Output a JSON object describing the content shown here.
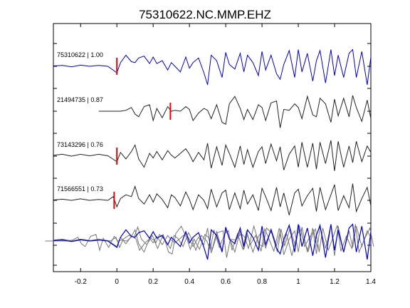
{
  "chart_data": {
    "type": "line",
    "title": "75310622.NC.MMP.EHZ",
    "xlabel": "",
    "ylabel": "",
    "xlim": [
      -0.35,
      1.4
    ],
    "x_ticks": [
      -0.2,
      0,
      0.2,
      0.4,
      0.6,
      0.8,
      1,
      1.2,
      1.4
    ],
    "x_tick_labels": [
      "-0.2",
      "0",
      "0.2",
      "0.4",
      "0.6",
      "0.8",
      "1",
      "1.2",
      "1.4"
    ],
    "grid": false,
    "colors": {
      "reference": "#0000cc",
      "others": "#222222",
      "overlay_others": "#777777",
      "pick": "#ee0000"
    },
    "traces": [
      {
        "label": "75310622 | 1.00",
        "pick_time": 0.0,
        "color": "#0000cc",
        "x": [
          -0.35,
          -0.3,
          -0.25,
          -0.2,
          -0.15,
          -0.1,
          -0.05,
          0,
          0.02,
          0.05,
          0.08,
          0.1,
          0.12,
          0.15,
          0.18,
          0.2,
          0.22,
          0.25,
          0.28,
          0.3,
          0.32,
          0.35,
          0.38,
          0.4,
          0.42,
          0.45,
          0.48,
          0.5,
          0.52,
          0.55,
          0.58,
          0.6,
          0.62,
          0.65,
          0.68,
          0.7,
          0.72,
          0.75,
          0.78,
          0.8,
          0.82,
          0.85,
          0.88,
          0.9,
          0.92,
          0.95,
          0.98,
          1,
          1.02,
          1.05,
          1.08,
          1.1,
          1.12,
          1.15,
          1.18,
          1.2,
          1.22,
          1.25,
          1.28,
          1.3,
          1.32,
          1.35,
          1.38,
          1.4
        ],
        "y": [
          0.02,
          0.05,
          -0.03,
          0.06,
          0,
          0.05,
          0,
          -0.35,
          0.2,
          0.6,
          0.25,
          0.2,
          0.45,
          0.55,
          0.15,
          0.5,
          0.15,
          0.3,
          -0.2,
          0.2,
          0,
          -0.3,
          0.5,
          -0.1,
          0.2,
          0.45,
          -0.35,
          -1,
          0.6,
          0.3,
          -0.6,
          0.75,
          0.1,
          -0.15,
          0.7,
          -0.3,
          0.6,
          0.2,
          -0.5,
          0.8,
          -0.2,
          0.6,
          -0.4,
          -0.7,
          0.1,
          0.85,
          -0.6,
          0.9,
          -0.3,
          0.7,
          -0.8,
          0.3,
          0.85,
          -0.9,
          0.9,
          -0.5,
          0.6,
          -0.6,
          0.7,
          0.9,
          -0.6,
          0.8,
          -1,
          0.5
        ]
      },
      {
        "label": "21494735 | 0.87",
        "pick_time": 0.295,
        "color": "#222222",
        "x": [
          -0.1,
          -0.05,
          0,
          0.02,
          0.05,
          0.08,
          0.1,
          0.12,
          0.15,
          0.18,
          0.2,
          0.22,
          0.25,
          0.28,
          0.3,
          0.32,
          0.35,
          0.38,
          0.4,
          0.42,
          0.45,
          0.48,
          0.5,
          0.52,
          0.55,
          0.58,
          0.6,
          0.62,
          0.65,
          0.68,
          0.7,
          0.72,
          0.75,
          0.78,
          0.8,
          0.82,
          0.85,
          0.88,
          0.9,
          0.92,
          0.95,
          0.98,
          1,
          1.02,
          1.05,
          1.08,
          1.1,
          1.12,
          1.15,
          1.18,
          1.2,
          1.22,
          1.25,
          1.28,
          1.3,
          1.32,
          1.35,
          1.38,
          1.4
        ],
        "y": [
          0,
          0,
          0,
          0,
          0.05,
          0.2,
          -0.15,
          -0.3,
          0.25,
          0.35,
          -0.5,
          0.15,
          -0.35,
          0.25,
          0,
          0.05,
          0,
          0.25,
          0.1,
          -0.5,
          -0.1,
          0.15,
          0.05,
          -0.4,
          0.35,
          -0.6,
          -0.7,
          0.4,
          0.8,
          0.15,
          -0.45,
          0.1,
          -0.45,
          0.35,
          0.2,
          -0.5,
          0.45,
          0.55,
          -0.9,
          0.1,
          0.05,
          0.4,
          0.2,
          -0.4,
          0.8,
          -0.2,
          -0.3,
          0.7,
          0.4,
          -0.6,
          0.65,
          -0.25,
          0.7,
          -0.3,
          0.85,
          0.2,
          -0.55,
          0.6,
          -0.4
        ]
      },
      {
        "label": "73143296 | 0.76",
        "pick_time": 0.0,
        "color": "#222222",
        "x": [
          -0.35,
          -0.3,
          -0.25,
          -0.2,
          -0.15,
          -0.1,
          -0.05,
          0,
          0.02,
          0.05,
          0.08,
          0.1,
          0.12,
          0.15,
          0.18,
          0.2,
          0.22,
          0.25,
          0.28,
          0.3,
          0.32,
          0.35,
          0.38,
          0.4,
          0.42,
          0.45,
          0.48,
          0.5,
          0.52,
          0.55,
          0.58,
          0.6,
          0.62,
          0.65,
          0.68,
          0.7,
          0.72,
          0.75,
          0.78,
          0.8,
          0.82,
          0.85,
          0.88,
          0.9,
          0.92,
          0.95,
          0.98,
          1,
          1.02,
          1.05,
          1.08,
          1.1,
          1.12,
          1.15,
          1.18,
          1.2,
          1.22,
          1.25,
          1.28,
          1.3,
          1.32,
          1.35,
          1.38,
          1.4
        ],
        "y": [
          0.05,
          0.1,
          0,
          0.1,
          0.02,
          0.1,
          0.02,
          -0.3,
          0.2,
          -0.15,
          0.25,
          0.6,
          -0.15,
          -0.6,
          0.15,
          -0.1,
          0.25,
          -0.2,
          0.3,
          0.05,
          -0.1,
          0.15,
          0.4,
          0.1,
          -0.3,
          0.2,
          -0.2,
          0.7,
          -0.65,
          0.5,
          -0.5,
          0.6,
          0.15,
          -0.6,
          0.55,
          -0.45,
          0.35,
          -0.6,
          0.25,
          0.5,
          -0.4,
          0.65,
          -0.25,
          0.5,
          -0.75,
          0.1,
          0.55,
          -0.6,
          0.75,
          -0.6,
          0.7,
          -0.7,
          0.75,
          -0.4,
          0.85,
          -0.8,
          0.8,
          -0.6,
          0.55,
          -0.35,
          0.8,
          -0.3,
          0.55,
          0.2
        ]
      },
      {
        "label": "71566551 | 0.73",
        "pick_time": -0.015,
        "color": "#222222",
        "x": [
          -0.35,
          -0.3,
          -0.25,
          -0.2,
          -0.15,
          -0.1,
          -0.05,
          -0.02,
          0,
          0.02,
          0.05,
          0.08,
          0.1,
          0.12,
          0.15,
          0.18,
          0.2,
          0.22,
          0.25,
          0.28,
          0.3,
          0.32,
          0.35,
          0.38,
          0.4,
          0.42,
          0.45,
          0.48,
          0.5,
          0.52,
          0.55,
          0.58,
          0.6,
          0.62,
          0.65,
          0.68,
          0.7,
          0.72,
          0.75,
          0.78,
          0.8,
          0.82,
          0.85,
          0.88,
          0.9,
          0.92,
          0.95,
          0.98,
          1,
          1.02,
          1.05,
          1.08,
          1.1,
          1.12,
          1.15,
          1.18,
          1.2,
          1.22,
          1.25,
          1.28,
          1.3,
          1.32,
          1.35,
          1.38,
          1.4
        ],
        "y": [
          0.02,
          0.06,
          0,
          0.08,
          0,
          0.05,
          0,
          0.2,
          -0.35,
          0.1,
          0.3,
          0.2,
          0.75,
          0.1,
          -0.2,
          0.3,
          -0.1,
          0.35,
          0.05,
          -0.4,
          0.3,
          0.15,
          -0.3,
          0.45,
          0.05,
          -0.5,
          0.3,
          0,
          -0.45,
          0.6,
          -0.35,
          0.4,
          0.55,
          -0.5,
          0.4,
          -0.45,
          0.55,
          -0.2,
          0.3,
          -0.55,
          0.65,
          0.2,
          -0.55,
          0.7,
          -0.35,
          0.4,
          -0.8,
          0.4,
          0.6,
          -0.3,
          0.25,
          0.65,
          -0.6,
          0.7,
          -0.5,
          0.3,
          0.85,
          -0.55,
          0.25,
          -0.4,
          0.9,
          -0.6,
          0.1,
          0.7,
          -0.3
        ]
      }
    ]
  }
}
